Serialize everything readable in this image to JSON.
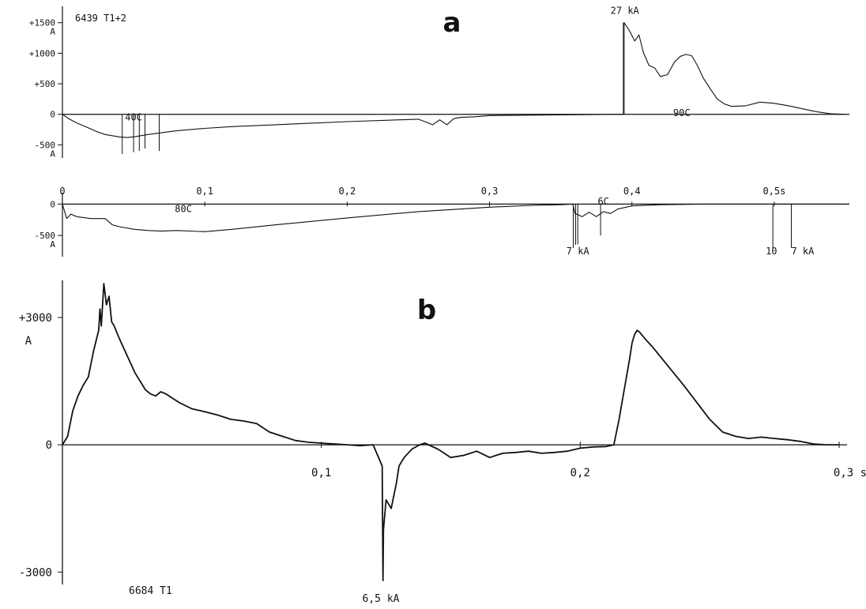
{
  "panels": {
    "a": {
      "label": "a",
      "top": {
        "id_label": "6439 T1+2",
        "y_ticks": [
          {
            "value": 1500,
            "label": "+1500"
          },
          {
            "value": 1000,
            "label": "+1000"
          },
          {
            "value": 500,
            "label": "+500"
          },
          {
            "value": 0,
            "label": "0"
          },
          {
            "value": -500,
            "label": "-500"
          }
        ],
        "y_unit_upper": "A",
        "y_unit_lower": "A",
        "annotations": [
          {
            "text": "27 kA",
            "x": 0.395,
            "y": 1700
          },
          {
            "text": "40C",
            "x": 0.05,
            "y": -50
          },
          {
            "text": "90C",
            "x": 0.435,
            "y": 20
          }
        ]
      },
      "bottom": {
        "x_ticks": [
          {
            "value": 0,
            "label": "0"
          },
          {
            "value": 0.1,
            "label": "0,1"
          },
          {
            "value": 0.2,
            "label": "0,2"
          },
          {
            "value": 0.3,
            "label": "0,3"
          },
          {
            "value": 0.4,
            "label": "0,4"
          },
          {
            "value": 0.5,
            "label": "0,5s"
          }
        ],
        "y_ticks": [
          {
            "value": 0,
            "label": "0"
          },
          {
            "value": -500,
            "label": "-500"
          }
        ],
        "y_unit": "A",
        "annotations": [
          {
            "text": "80C",
            "x": 0.085,
            "y": -80
          },
          {
            "text": "6C",
            "x": 0.38,
            "y": 40
          },
          {
            "text": "7 kA",
            "x": 0.362,
            "y": -750
          },
          {
            "text": "10",
            "x": 0.498,
            "y": -750
          },
          {
            "text": "7  kA",
            "x": 0.52,
            "y": -750
          }
        ]
      }
    },
    "b": {
      "label": "b",
      "id_label": "6684  T1",
      "x_ticks": [
        {
          "value": 0.1,
          "label": "0,1"
        },
        {
          "value": 0.2,
          "label": "0,2"
        },
        {
          "value": 0.3,
          "label": "0,3  s"
        }
      ],
      "y_ticks": [
        {
          "value": 3000,
          "label": "+3000"
        },
        {
          "value": 0,
          "label": "0"
        },
        {
          "value": -3000,
          "label": "-3000"
        }
      ],
      "y_unit": "A",
      "annotations": [
        {
          "text": "6,5  kA",
          "x": 0.123,
          "y": -3450
        }
      ]
    }
  },
  "chart_data": [
    {
      "type": "line",
      "title": "a",
      "subtitle": "6439 T1+2",
      "xlabel": "",
      "ylabel": "A",
      "xlim": [
        0,
        0.55
      ],
      "ylim": [
        -650,
        1600
      ],
      "series": [
        {
          "x": [
            0,
            0.005,
            0.01,
            0.015,
            0.02,
            0.025,
            0.03,
            0.035,
            0.04,
            0.045,
            0.05,
            0.06,
            0.07,
            0.08,
            0.1,
            0.12,
            0.15,
            0.17,
            0.2,
            0.25,
            0.26,
            0.265,
            0.27,
            0.275,
            0.28,
            0.29,
            0.3,
            0.35,
            0.394
          ],
          "y": [
            0,
            -80,
            -140,
            -190,
            -240,
            -290,
            -330,
            -350,
            -370,
            -380,
            -370,
            -330,
            -300,
            -270,
            -230,
            -200,
            -170,
            -150,
            -120,
            -80,
            -170,
            -90,
            -170,
            -70,
            -50,
            -40,
            -20,
            -10,
            0
          ]
        },
        {
          "x": [
            0.3945,
            0.3945,
            0.398,
            0.402,
            0.405,
            0.408,
            0.412,
            0.416,
            0.42,
            0.425,
            0.43,
            0.434,
            0.438,
            0.442,
            0.446,
            0.45,
            0.455,
            0.46,
            0.465,
            0.47,
            0.48,
            0.49,
            0.5,
            0.51,
            0.52,
            0.53,
            0.54,
            0.55
          ],
          "y": [
            0,
            1500,
            1380,
            1200,
            1300,
            1020,
            800,
            760,
            620,
            650,
            860,
            950,
            980,
            960,
            800,
            600,
            420,
            250,
            170,
            130,
            140,
            200,
            180,
            140,
            90,
            40,
            10,
            0
          ]
        }
      ],
      "spikes": [
        {
          "x": 0.042,
          "y": -650
        },
        {
          "x": 0.05,
          "y": -620
        },
        {
          "x": 0.054,
          "y": -600
        },
        {
          "x": 0.058,
          "y": -560
        },
        {
          "x": 0.068,
          "y": -600
        },
        {
          "x": 0.394,
          "y": 1500
        }
      ]
    },
    {
      "type": "line",
      "xlabel": "s",
      "ylabel": "A",
      "xlim": [
        0,
        0.55
      ],
      "ylim": [
        -750,
        80
      ],
      "series": [
        {
          "x": [
            0,
            0.003,
            0.006,
            0.01,
            0.02,
            0.03,
            0.035,
            0.04,
            0.05,
            0.06,
            0.07,
            0.08,
            0.1,
            0.12,
            0.15,
            0.2,
            0.25,
            0.3,
            0.33,
            0.35,
            0.3585,
            0.36,
            0.365,
            0.37,
            0.375,
            0.38,
            0.385,
            0.39,
            0.4,
            0.42,
            0.45,
            0.5,
            0.55
          ],
          "y": [
            0,
            -230,
            -160,
            -200,
            -230,
            -230,
            -330,
            -360,
            -400,
            -420,
            -430,
            -420,
            -440,
            -400,
            -330,
            -220,
            -120,
            -50,
            -20,
            -10,
            0,
            -150,
            -200,
            -130,
            -200,
            -120,
            -150,
            -80,
            -30,
            -10,
            0,
            0,
            0
          ]
        }
      ],
      "spikes": [
        {
          "x": 0.3588,
          "y": -700
        },
        {
          "x": 0.3605,
          "y": -650
        },
        {
          "x": 0.362,
          "y": -640
        },
        {
          "x": 0.378,
          "y": -500
        },
        {
          "x": 0.499,
          "y": -700
        },
        {
          "x": 0.512,
          "y": -700
        }
      ]
    },
    {
      "type": "line",
      "title": "b",
      "subtitle": "6684  T1",
      "xlabel": "s",
      "ylabel": "A",
      "xlim": [
        0,
        0.3
      ],
      "ylim": [
        -3200,
        3800
      ],
      "series": [
        {
          "x": [
            0,
            0.002,
            0.004,
            0.006,
            0.008,
            0.01,
            0.012,
            0.014,
            0.0145,
            0.015,
            0.016,
            0.017,
            0.018,
            0.019,
            0.02,
            0.022,
            0.025,
            0.028,
            0.03,
            0.032,
            0.034,
            0.036,
            0.038,
            0.04,
            0.045,
            0.05,
            0.055,
            0.06,
            0.065,
            0.07,
            0.075,
            0.08,
            0.085,
            0.09,
            0.095,
            0.1,
            0.105,
            0.11,
            0.115,
            0.12,
            0.1235,
            0.1238,
            0.124,
            0.125,
            0.127,
            0.129,
            0.13,
            0.132,
            0.135,
            0.138,
            0.14,
            0.145,
            0.15,
            0.155,
            0.16,
            0.165,
            0.17,
            0.175,
            0.18,
            0.185,
            0.19,
            0.195,
            0.2,
            0.205,
            0.21,
            0.213,
            0.215,
            0.217,
            0.219,
            0.22,
            0.221,
            0.222,
            0.223,
            0.225,
            0.228,
            0.232,
            0.236,
            0.24,
            0.245,
            0.25,
            0.255,
            0.26,
            0.265,
            0.27,
            0.275,
            0.28,
            0.285,
            0.29,
            0.295,
            0.3
          ],
          "y": [
            0,
            200,
            800,
            1150,
            1400,
            1600,
            2200,
            2700,
            3200,
            2800,
            3800,
            3300,
            3500,
            2900,
            2800,
            2500,
            2100,
            1700,
            1500,
            1300,
            1200,
            1150,
            1250,
            1200,
            1000,
            850,
            780,
            700,
            600,
            560,
            500,
            300,
            200,
            100,
            60,
            40,
            20,
            0,
            -20,
            0,
            -500,
            -3200,
            -2000,
            -1300,
            -1500,
            -900,
            -500,
            -300,
            -100,
            0,
            40,
            -100,
            -300,
            -250,
            -150,
            -300,
            -200,
            -180,
            -150,
            -200,
            -180,
            -150,
            -80,
            -50,
            -40,
            0,
            600,
            1300,
            2000,
            2400,
            2600,
            2700,
            2650,
            2500,
            2300,
            2000,
            1700,
            1400,
            1000,
            600,
            300,
            200,
            150,
            180,
            150,
            120,
            80,
            20,
            0,
            0
          ]
        }
      ]
    }
  ]
}
